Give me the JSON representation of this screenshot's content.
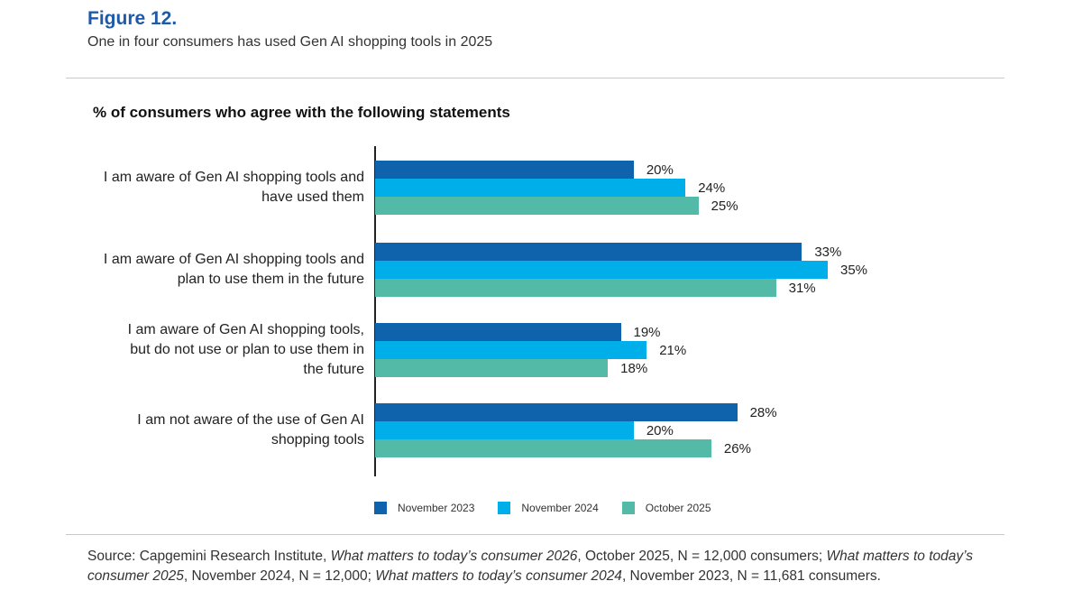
{
  "figure_label": "Figure 12.",
  "figure_caption": "One in four consumers has used Gen AI shopping tools in 2025",
  "colors": {
    "series": [
      "#0f62ac",
      "#00aee9",
      "#52baa6"
    ]
  },
  "chart_data": {
    "type": "bar",
    "orientation": "horizontal",
    "title": "% of consumers who agree with the following statements",
    "categories": [
      [
        "I am aware of Gen AI shopping tools and",
        "have used them"
      ],
      [
        "I am aware of Gen AI shopping tools and",
        "plan to use them in the future"
      ],
      [
        "I am aware of Gen AI shopping tools,",
        "but do not use or plan to use them in",
        "the future"
      ],
      [
        "I am not aware of the use of Gen AI",
        "shopping tools"
      ]
    ],
    "series": [
      {
        "name": "November 2023",
        "values": [
          20,
          33,
          19,
          28
        ]
      },
      {
        "name": "November 2024",
        "values": [
          24,
          35,
          21,
          20
        ]
      },
      {
        "name": "October 2025",
        "values": [
          25,
          31,
          18,
          26
        ]
      }
    ],
    "value_suffix": "%",
    "xlim": [
      0,
      35
    ],
    "legend_position": "bottom"
  },
  "source": [
    {
      "text": "Source: Capgemini Research Institute, ",
      "italic": false
    },
    {
      "text": "What matters to today’s consumer 2026",
      "italic": true
    },
    {
      "text": ", October 2025, N = 12,000 consumers; ",
      "italic": false
    },
    {
      "text": "What matters to today’s consumer 2025",
      "italic": true
    },
    {
      "text": ", November 2024, N = 12,000; ",
      "italic": false
    },
    {
      "text": "What matters to today’s consumer 2024",
      "italic": true
    },
    {
      "text": ", November 2023, N = 11,681 consumers.",
      "italic": false
    }
  ]
}
